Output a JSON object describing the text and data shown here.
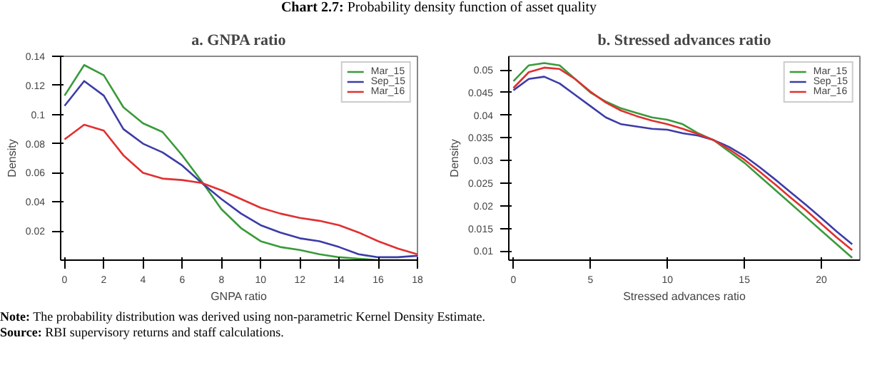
{
  "chart_data": [
    {
      "type": "line",
      "title": "a. GNPA ratio",
      "xlabel": "GNPA ratio",
      "ylabel": "Density",
      "annotations": [
        "Chart 2.7: Probability density function of asset quality"
      ],
      "x": [
        0,
        1,
        2,
        3,
        4,
        5,
        6,
        7,
        8,
        9,
        10,
        11,
        12,
        13,
        14,
        15,
        16,
        17,
        18
      ],
      "series": [
        {
          "name": "Mar_15",
          "color": "#3a9a3a",
          "values": [
            0.113,
            0.134,
            0.127,
            0.105,
            0.094,
            0.088,
            0.072,
            0.054,
            0.035,
            0.022,
            0.013,
            0.009,
            0.007,
            0.004,
            0.002,
            0.001,
            0.0,
            0.0,
            0.0
          ]
        },
        {
          "name": "Sep_15",
          "color": "#3c3ca8",
          "values": [
            0.106,
            0.123,
            0.113,
            0.09,
            0.08,
            0.074,
            0.065,
            0.053,
            0.042,
            0.032,
            0.024,
            0.019,
            0.015,
            0.013,
            0.009,
            0.004,
            0.002,
            0.002,
            0.003
          ]
        },
        {
          "name": "Mar_16",
          "color": "#e03030",
          "values": [
            0.083,
            0.093,
            0.089,
            0.072,
            0.06,
            0.056,
            0.055,
            0.053,
            0.048,
            0.042,
            0.036,
            0.032,
            0.029,
            0.027,
            0.024,
            0.019,
            0.013,
            0.008,
            0.004
          ]
        }
      ],
      "xlim": [
        -0.2,
        18
      ],
      "ylim": [
        0,
        0.14
      ],
      "xticks": [
        0,
        2,
        4,
        6,
        8,
        10,
        12,
        14,
        16,
        18
      ],
      "yticks": [
        0.02,
        0.04,
        0.06,
        0.08,
        0.1,
        0.12,
        0.14
      ],
      "legend": "top right",
      "grid": false
    },
    {
      "type": "line",
      "title": "b. Stressed advances ratio",
      "xlabel": "Stressed advances ratio",
      "ylabel": "Density",
      "annotations": [
        "Note: The probability distribution was derived using non-parametric Kernel Density Estimate.",
        "Source: RBI supervisory returns and staff calculations."
      ],
      "x": [
        0,
        1,
        2,
        3,
        4,
        5,
        6,
        7,
        8,
        9,
        10,
        11,
        12,
        13,
        14,
        15,
        16,
        17,
        18,
        19,
        20,
        21,
        22
      ],
      "series": [
        {
          "name": "Mar_15",
          "color": "#3a9a3a",
          "values": [
            0.0475,
            0.051,
            0.0515,
            0.051,
            0.048,
            0.045,
            0.043,
            0.0415,
            0.0405,
            0.0395,
            0.039,
            0.038,
            0.036,
            0.0345,
            0.032,
            0.0295,
            0.0265,
            0.0235,
            0.0205,
            0.0175,
            0.0145,
            0.0115,
            0.0085
          ]
        },
        {
          "name": "Sep_15",
          "color": "#3c3ca8",
          "values": [
            0.0455,
            0.048,
            0.0485,
            0.047,
            0.0445,
            0.042,
            0.0395,
            0.038,
            0.0375,
            0.037,
            0.0368,
            0.036,
            0.0355,
            0.0345,
            0.033,
            0.031,
            0.0285,
            0.0258,
            0.023,
            0.0202,
            0.0173,
            0.0143,
            0.0115
          ]
        },
        {
          "name": "Mar_16",
          "color": "#e03030",
          "values": [
            0.046,
            0.0495,
            0.0505,
            0.0502,
            0.048,
            0.0452,
            0.0428,
            0.041,
            0.0398,
            0.0388,
            0.038,
            0.037,
            0.0358,
            0.0345,
            0.0325,
            0.0302,
            0.0275,
            0.0247,
            0.0218,
            0.019,
            0.016,
            0.013,
            0.0102
          ]
        }
      ],
      "xlim": [
        -0.3,
        22.5
      ],
      "ylim": [
        0.008,
        0.053
      ],
      "xticks": [
        0,
        5,
        10,
        15,
        20
      ],
      "yticks": [
        0.01,
        0.015,
        0.02,
        0.025,
        0.03,
        0.035,
        0.04,
        0.045,
        0.05
      ],
      "legend": "top right",
      "grid": false
    }
  ]
}
